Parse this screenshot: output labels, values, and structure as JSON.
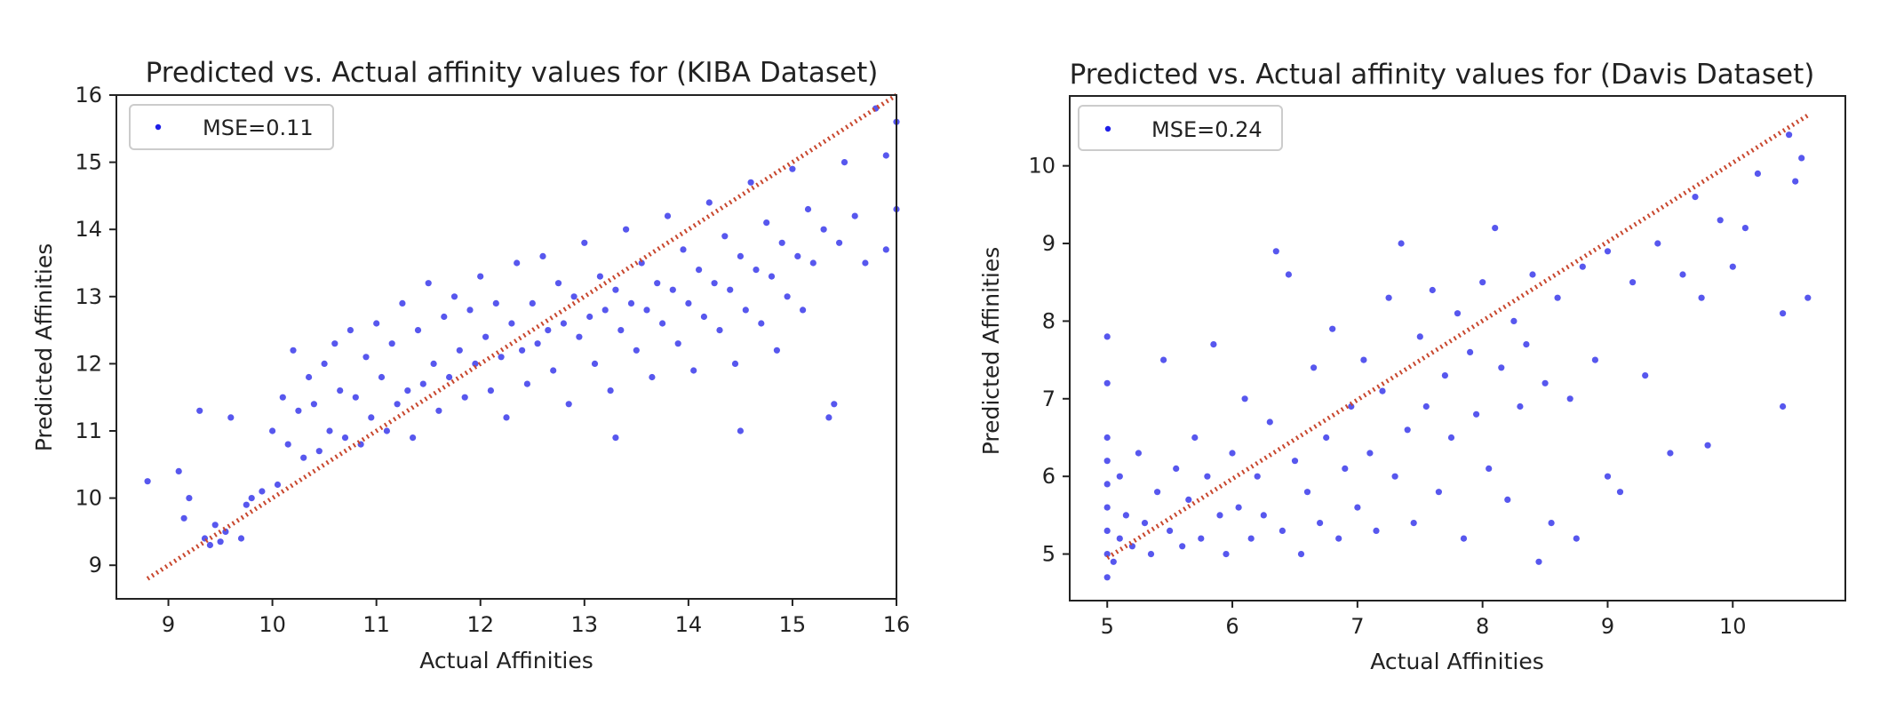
{
  "chart_data": [
    {
      "type": "scatter",
      "title": "Predicted vs. Actual affinity values for (KIBA Dataset)",
      "xlabel": "Actual Affinities",
      "ylabel": "Predicted Affinities",
      "xlim": [
        8.5,
        16
      ],
      "ylim": [
        8.5,
        16
      ],
      "xticks": [
        "9",
        "10",
        "11",
        "12",
        "13",
        "14",
        "15",
        "16"
      ],
      "yticks": [
        "9",
        "10",
        "11",
        "12",
        "13",
        "14",
        "15",
        "16"
      ],
      "grid": false,
      "legend_position": "top-left",
      "legend": "MSE=0.11",
      "series": [
        {
          "name": "MSE=0.11",
          "style": "scatter",
          "color": "#1f1fe8",
          "points": [
            [
              8.8,
              10.25
            ],
            [
              9.1,
              10.4
            ],
            [
              9.15,
              9.7
            ],
            [
              9.2,
              10.0
            ],
            [
              9.3,
              11.3
            ],
            [
              9.35,
              9.4
            ],
            [
              9.4,
              9.3
            ],
            [
              9.45,
              9.6
            ],
            [
              9.5,
              9.35
            ],
            [
              9.55,
              9.5
            ],
            [
              9.6,
              11.2
            ],
            [
              9.7,
              9.4
            ],
            [
              9.75,
              9.9
            ],
            [
              9.8,
              10.0
            ],
            [
              9.9,
              10.1
            ],
            [
              10.0,
              11.0
            ],
            [
              10.05,
              10.2
            ],
            [
              10.1,
              11.5
            ],
            [
              10.15,
              10.8
            ],
            [
              10.2,
              12.2
            ],
            [
              10.25,
              11.3
            ],
            [
              10.3,
              10.6
            ],
            [
              10.35,
              11.8
            ],
            [
              10.4,
              11.4
            ],
            [
              10.45,
              10.7
            ],
            [
              10.5,
              12.0
            ],
            [
              10.55,
              11.0
            ],
            [
              10.6,
              12.3
            ],
            [
              10.65,
              11.6
            ],
            [
              10.7,
              10.9
            ],
            [
              10.75,
              12.5
            ],
            [
              10.8,
              11.5
            ],
            [
              10.85,
              10.8
            ],
            [
              10.9,
              12.1
            ],
            [
              10.95,
              11.2
            ],
            [
              11.0,
              12.6
            ],
            [
              11.05,
              11.8
            ],
            [
              11.1,
              11.0
            ],
            [
              11.15,
              12.3
            ],
            [
              11.2,
              11.4
            ],
            [
              11.25,
              12.9
            ],
            [
              11.3,
              11.6
            ],
            [
              11.35,
              10.9
            ],
            [
              11.4,
              12.5
            ],
            [
              11.45,
              11.7
            ],
            [
              11.5,
              13.2
            ],
            [
              11.55,
              12.0
            ],
            [
              11.6,
              11.3
            ],
            [
              11.65,
              12.7
            ],
            [
              11.7,
              11.8
            ],
            [
              11.75,
              13.0
            ],
            [
              11.8,
              12.2
            ],
            [
              11.85,
              11.5
            ],
            [
              11.9,
              12.8
            ],
            [
              11.95,
              12.0
            ],
            [
              12.0,
              13.3
            ],
            [
              12.05,
              12.4
            ],
            [
              12.1,
              11.6
            ],
            [
              12.15,
              12.9
            ],
            [
              12.2,
              12.1
            ],
            [
              12.25,
              11.2
            ],
            [
              12.3,
              12.6
            ],
            [
              12.35,
              13.5
            ],
            [
              12.4,
              12.2
            ],
            [
              12.45,
              11.7
            ],
            [
              12.5,
              12.9
            ],
            [
              12.55,
              12.3
            ],
            [
              12.6,
              13.6
            ],
            [
              12.65,
              12.5
            ],
            [
              12.7,
              11.9
            ],
            [
              12.75,
              13.2
            ],
            [
              12.8,
              12.6
            ],
            [
              12.85,
              11.4
            ],
            [
              12.9,
              13.0
            ],
            [
              12.95,
              12.4
            ],
            [
              13.0,
              13.8
            ],
            [
              13.05,
              12.7
            ],
            [
              13.1,
              12.0
            ],
            [
              13.15,
              13.3
            ],
            [
              13.2,
              12.8
            ],
            [
              13.25,
              11.6
            ],
            [
              13.3,
              13.1
            ],
            [
              13.35,
              12.5
            ],
            [
              13.4,
              14.0
            ],
            [
              13.45,
              12.9
            ],
            [
              13.5,
              12.2
            ],
            [
              13.55,
              13.5
            ],
            [
              13.6,
              12.8
            ],
            [
              13.65,
              11.8
            ],
            [
              13.7,
              13.2
            ],
            [
              13.75,
              12.6
            ],
            [
              13.8,
              14.2
            ],
            [
              13.85,
              13.1
            ],
            [
              13.9,
              12.3
            ],
            [
              13.95,
              13.7
            ],
            [
              14.0,
              12.9
            ],
            [
              14.05,
              11.9
            ],
            [
              14.1,
              13.4
            ],
            [
              14.15,
              12.7
            ],
            [
              14.2,
              14.4
            ],
            [
              14.25,
              13.2
            ],
            [
              14.3,
              12.5
            ],
            [
              14.35,
              13.9
            ],
            [
              14.4,
              13.1
            ],
            [
              14.45,
              12.0
            ],
            [
              14.5,
              13.6
            ],
            [
              14.55,
              12.8
            ],
            [
              14.6,
              14.7
            ],
            [
              14.65,
              13.4
            ],
            [
              14.7,
              12.6
            ],
            [
              14.75,
              14.1
            ],
            [
              14.8,
              13.3
            ],
            [
              14.85,
              12.2
            ],
            [
              14.9,
              13.8
            ],
            [
              14.95,
              13.0
            ],
            [
              15.0,
              14.9
            ],
            [
              15.05,
              13.6
            ],
            [
              15.1,
              12.8
            ],
            [
              15.15,
              14.3
            ],
            [
              15.2,
              13.5
            ],
            [
              15.3,
              14.0
            ],
            [
              15.4,
              11.4
            ],
            [
              15.45,
              13.8
            ],
            [
              15.5,
              15.0
            ],
            [
              15.6,
              14.2
            ],
            [
              15.7,
              13.5
            ],
            [
              15.8,
              15.8
            ],
            [
              15.9,
              13.7
            ],
            [
              16.0,
              14.3
            ],
            [
              15.35,
              11.2
            ],
            [
              14.5,
              11.0
            ],
            [
              13.3,
              10.9
            ],
            [
              15.9,
              15.1
            ],
            [
              16.0,
              15.6
            ]
          ]
        },
        {
          "name": "",
          "style": "line",
          "color": "#c8472e",
          "points": [
            [
              8.8,
              8.8
            ],
            [
              16.0,
              16.0
            ]
          ]
        }
      ]
    },
    {
      "type": "scatter",
      "title": "Predicted vs. Actual affinity values for (Davis Dataset)",
      "xlabel": "Actual Affinities",
      "ylabel": "Predicted Affinities",
      "xlim": [
        4.7,
        10.9
      ],
      "ylim": [
        4.4,
        10.9
      ],
      "xticks": [
        "5",
        "6",
        "7",
        "8",
        "9",
        "10"
      ],
      "yticks": [
        "5",
        "6",
        "7",
        "8",
        "9",
        "10"
      ],
      "grid": false,
      "legend_position": "top-left",
      "legend": "MSE=0.24",
      "series": [
        {
          "name": "MSE=0.24",
          "style": "scatter",
          "color": "#1f1fe8",
          "points": [
            [
              5.0,
              4.7
            ],
            [
              5.0,
              5.0
            ],
            [
              5.0,
              5.3
            ],
            [
              5.0,
              5.6
            ],
            [
              5.0,
              5.9
            ],
            [
              5.0,
              6.2
            ],
            [
              5.0,
              6.5
            ],
            [
              5.0,
              7.2
            ],
            [
              5.0,
              7.8
            ],
            [
              5.05,
              4.9
            ],
            [
              5.1,
              5.2
            ],
            [
              5.1,
              6.0
            ],
            [
              5.15,
              5.5
            ],
            [
              5.2,
              5.1
            ],
            [
              5.25,
              6.3
            ],
            [
              5.3,
              5.4
            ],
            [
              5.35,
              5.0
            ],
            [
              5.4,
              5.8
            ],
            [
              5.45,
              7.5
            ],
            [
              5.5,
              5.3
            ],
            [
              5.55,
              6.1
            ],
            [
              5.6,
              5.1
            ],
            [
              5.65,
              5.7
            ],
            [
              5.7,
              6.5
            ],
            [
              5.75,
              5.2
            ],
            [
              5.8,
              6.0
            ],
            [
              5.85,
              7.7
            ],
            [
              5.9,
              5.5
            ],
            [
              5.95,
              5.0
            ],
            [
              6.0,
              6.3
            ],
            [
              6.05,
              5.6
            ],
            [
              6.1,
              7.0
            ],
            [
              6.15,
              5.2
            ],
            [
              6.2,
              6.0
            ],
            [
              6.25,
              5.5
            ],
            [
              6.3,
              6.7
            ],
            [
              6.35,
              8.9
            ],
            [
              6.4,
              5.3
            ],
            [
              6.45,
              8.6
            ],
            [
              6.5,
              6.2
            ],
            [
              6.55,
              5.0
            ],
            [
              6.6,
              5.8
            ],
            [
              6.65,
              7.4
            ],
            [
              6.7,
              5.4
            ],
            [
              6.75,
              6.5
            ],
            [
              6.8,
              7.9
            ],
            [
              6.85,
              5.2
            ],
            [
              6.9,
              6.1
            ],
            [
              6.95,
              6.9
            ],
            [
              7.0,
              5.6
            ],
            [
              7.05,
              7.5
            ],
            [
              7.1,
              6.3
            ],
            [
              7.15,
              5.3
            ],
            [
              7.2,
              7.1
            ],
            [
              7.25,
              8.3
            ],
            [
              7.3,
              6.0
            ],
            [
              7.35,
              9.0
            ],
            [
              7.4,
              6.6
            ],
            [
              7.45,
              5.4
            ],
            [
              7.5,
              7.8
            ],
            [
              7.55,
              6.9
            ],
            [
              7.6,
              8.4
            ],
            [
              7.65,
              5.8
            ],
            [
              7.7,
              7.3
            ],
            [
              7.75,
              6.5
            ],
            [
              7.8,
              8.1
            ],
            [
              7.85,
              5.2
            ],
            [
              7.9,
              7.6
            ],
            [
              7.95,
              6.8
            ],
            [
              8.0,
              8.5
            ],
            [
              8.05,
              6.1
            ],
            [
              8.1,
              9.2
            ],
            [
              8.15,
              7.4
            ],
            [
              8.2,
              5.7
            ],
            [
              8.25,
              8.0
            ],
            [
              8.3,
              6.9
            ],
            [
              8.35,
              7.7
            ],
            [
              8.4,
              8.6
            ],
            [
              8.45,
              4.9
            ],
            [
              8.5,
              7.2
            ],
            [
              8.55,
              5.4
            ],
            [
              8.6,
              8.3
            ],
            [
              8.7,
              7.0
            ],
            [
              8.75,
              5.2
            ],
            [
              8.8,
              8.7
            ],
            [
              8.9,
              7.5
            ],
            [
              9.0,
              6.0
            ],
            [
              9.0,
              8.9
            ],
            [
              9.1,
              5.8
            ],
            [
              9.2,
              8.5
            ],
            [
              9.3,
              7.3
            ],
            [
              9.4,
              9.0
            ],
            [
              9.5,
              6.3
            ],
            [
              9.6,
              8.6
            ],
            [
              9.7,
              9.6
            ],
            [
              9.75,
              8.3
            ],
            [
              9.8,
              6.4
            ],
            [
              9.9,
              9.3
            ],
            [
              10.0,
              8.7
            ],
            [
              10.1,
              9.2
            ],
            [
              10.2,
              9.9
            ],
            [
              10.4,
              8.1
            ],
            [
              10.4,
              6.9
            ],
            [
              10.45,
              10.4
            ],
            [
              10.5,
              9.8
            ],
            [
              10.55,
              10.1
            ],
            [
              10.6,
              8.3
            ]
          ]
        },
        {
          "name": "",
          "style": "line",
          "color": "#c8472e",
          "points": [
            [
              5.0,
              4.95
            ],
            [
              10.6,
              10.65
            ]
          ]
        }
      ]
    }
  ]
}
